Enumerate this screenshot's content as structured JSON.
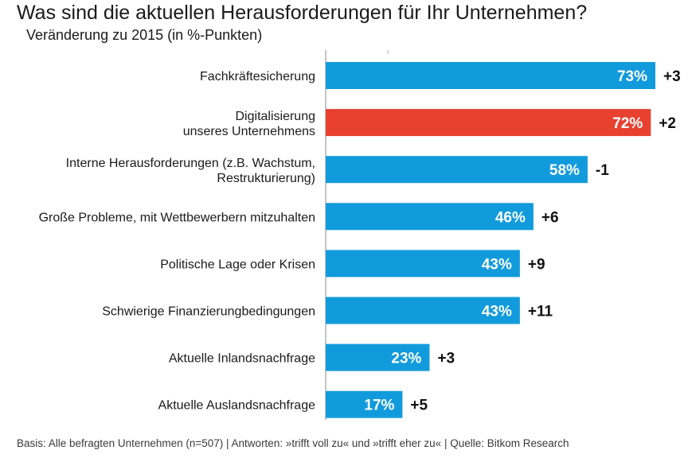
{
  "header": {
    "title": "Was sind die aktuellen Herausforderungen für Ihr Unternehmen?",
    "subtitle": "Veränderung zu 2015 (in %-Punkten)"
  },
  "footer": {
    "text": "Basis: Alle befragten Unternehmen (n=507) | Antworten: »trifft voll zu« und »trifft eher zu« | Quelle: Bitkom Research"
  },
  "colors": {
    "bar": "#129bdc",
    "highlight": "#e84130",
    "axis": "#b0b0b0"
  },
  "chart_data": {
    "type": "bar",
    "orientation": "horizontal",
    "title": "Was sind die aktuellen Herausforderungen für Ihr Unternehmen?",
    "subtitle": "Veränderung zu 2015 (in %-Punkten)",
    "xlim": [
      0,
      100
    ],
    "grid": false,
    "categories": [
      [
        "Fachkräftesicherung"
      ],
      [
        "Digitalisierung",
        "unseres Unternehmens"
      ],
      [
        "Interne Herausforderungen (z.B. Wachstum,",
        "Restrukturierung)"
      ],
      [
        "Große Probleme, mit Wettbewerbern mitzuhalten"
      ],
      [
        "Politische Lage oder Krisen"
      ],
      [
        "Schwierige Finanzierungbedingungen"
      ],
      [
        "Aktuelle Inlandsnachfrage"
      ],
      [
        "Aktuelle Auslandsnachfrage"
      ]
    ],
    "values": [
      73,
      72,
      58,
      46,
      43,
      43,
      23,
      17
    ],
    "value_labels": [
      "73%",
      "72%",
      "58%",
      "46%",
      "43%",
      "43%",
      "23%",
      "17%"
    ],
    "changes": [
      "+3",
      "+2",
      "-1",
      "+6",
      "+9",
      "+11",
      "+3",
      "+5"
    ],
    "highlight_index": 1
  }
}
